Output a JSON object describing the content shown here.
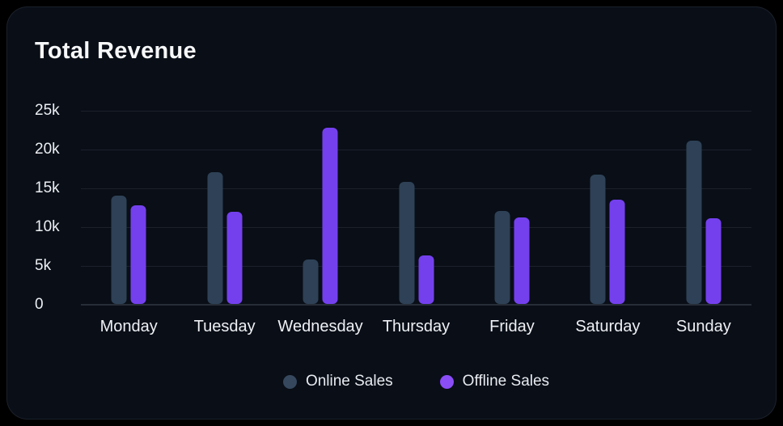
{
  "card": {
    "title": "Total Revenue"
  },
  "colors": {
    "page_background": "#000000",
    "card_background": "#090e17",
    "online_bar": "#2e4156",
    "offline_bar": "#7440ee",
    "online_legend_dot": "#36485e",
    "offline_legend_dot": "#8a4df6",
    "gridline": "rgba(186,198,216,0.10)",
    "text": "#f7f8fa"
  },
  "chart_data": {
    "type": "bar",
    "title": "Total Revenue",
    "xlabel": "",
    "ylabel": "",
    "categories": [
      "Monday",
      "Tuesday",
      "Wednesday",
      "Thursday",
      "Friday",
      "Saturday",
      "Sunday"
    ],
    "series": [
      {
        "name": "Online Sales",
        "color": "#2e4156",
        "dot_color": "#36485e",
        "values": [
          14000,
          17000,
          5700,
          15700,
          12000,
          16700,
          21000
        ]
      },
      {
        "name": "Offline Sales",
        "color": "#7440ee",
        "dot_color": "#8a4df6",
        "values": [
          12700,
          11900,
          22700,
          6300,
          11200,
          13400,
          11000
        ]
      }
    ],
    "ylim": [
      0,
      25000
    ],
    "y_tick_values": [
      0,
      5000,
      10000,
      15000,
      20000,
      25000
    ],
    "y_tick_labels": [
      "0",
      "5k",
      "10k",
      "15k",
      "20k",
      "25k"
    ],
    "grid": true,
    "legend_position": "bottom"
  }
}
